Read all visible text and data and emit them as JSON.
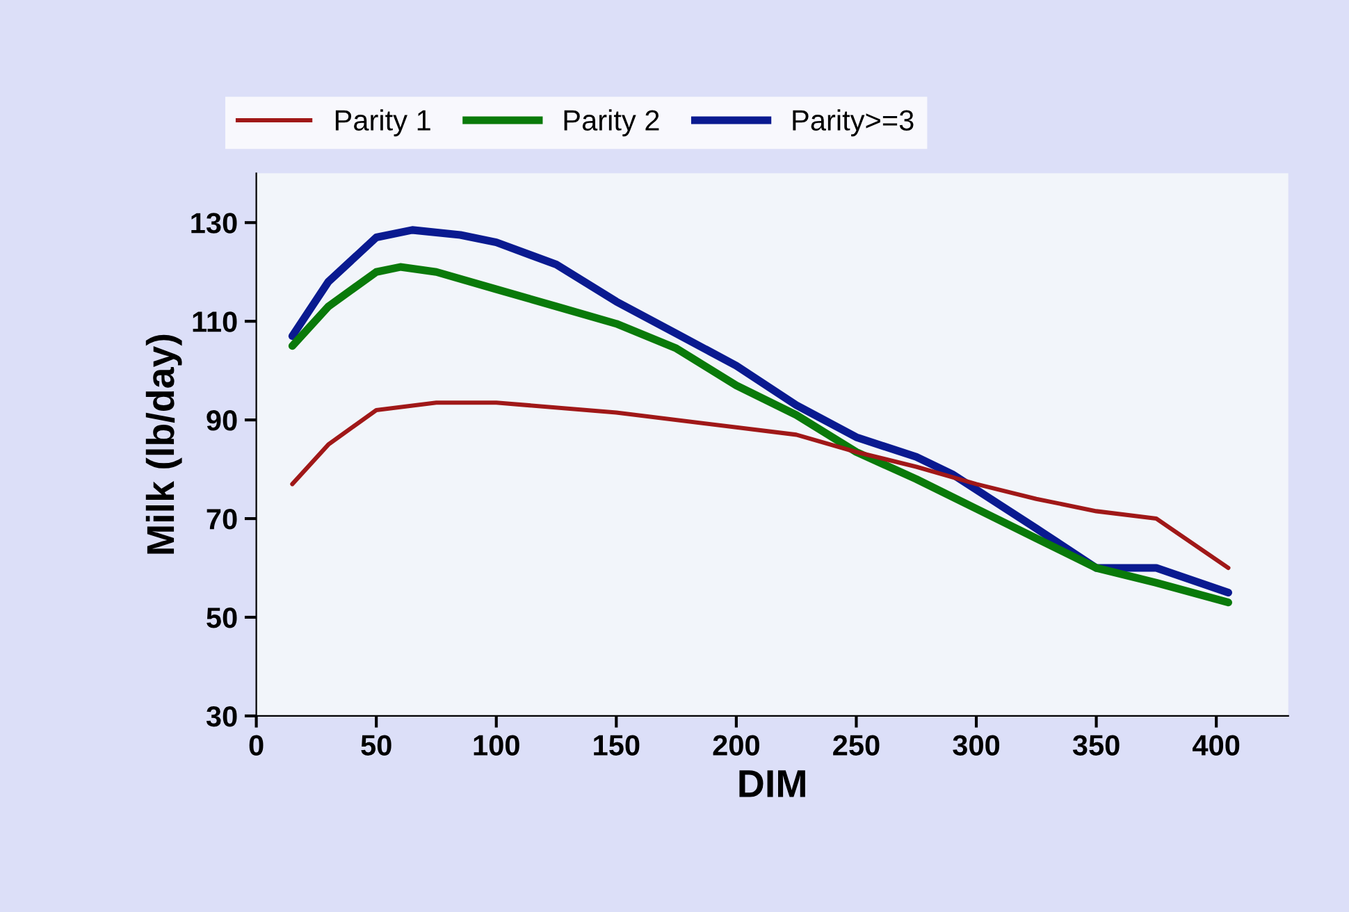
{
  "chart_data": {
    "type": "line",
    "xlabel": "DIM",
    "ylabel": "Milk (lb/day)",
    "xlim": [
      0,
      430
    ],
    "xticks": [
      0,
      50,
      100,
      150,
      200,
      250,
      300,
      350,
      400
    ],
    "ylim": [
      30,
      140
    ],
    "yticks": [
      30,
      50,
      70,
      90,
      110,
      130
    ],
    "grid": false,
    "legend": "top",
    "marker": "none",
    "line_style": "solid",
    "series": [
      {
        "name": "Parity 1",
        "color": "#a01818",
        "x": [
          15,
          30,
          50,
          75,
          100,
          150,
          200,
          225,
          250,
          275,
          300,
          325,
          350,
          375,
          405
        ],
        "values": [
          77,
          85,
          92,
          93.5,
          93.5,
          91.5,
          88.5,
          87,
          83.5,
          80.5,
          77,
          74,
          71.5,
          70,
          60
        ]
      },
      {
        "name": "Parity 2",
        "color": "#0a7a0a",
        "x": [
          15,
          30,
          50,
          60,
          75,
          100,
          125,
          150,
          175,
          200,
          225,
          250,
          275,
          300,
          325,
          350,
          375,
          405
        ],
        "values": [
          105,
          113,
          120,
          121,
          120,
          116.5,
          113,
          109.5,
          104.5,
          97,
          91,
          83.5,
          78,
          72,
          66,
          60,
          57,
          53
        ]
      },
      {
        "name": "Parity>=3",
        "color": "#0a1a90",
        "x": [
          15,
          30,
          50,
          65,
          85,
          100,
          125,
          150,
          175,
          200,
          225,
          250,
          275,
          290,
          325,
          350,
          375,
          405
        ],
        "values": [
          107,
          118,
          127,
          128.5,
          127.5,
          126,
          121.5,
          114,
          107.5,
          101,
          93,
          86.5,
          82.5,
          79,
          68,
          60,
          60,
          55
        ]
      }
    ]
  }
}
